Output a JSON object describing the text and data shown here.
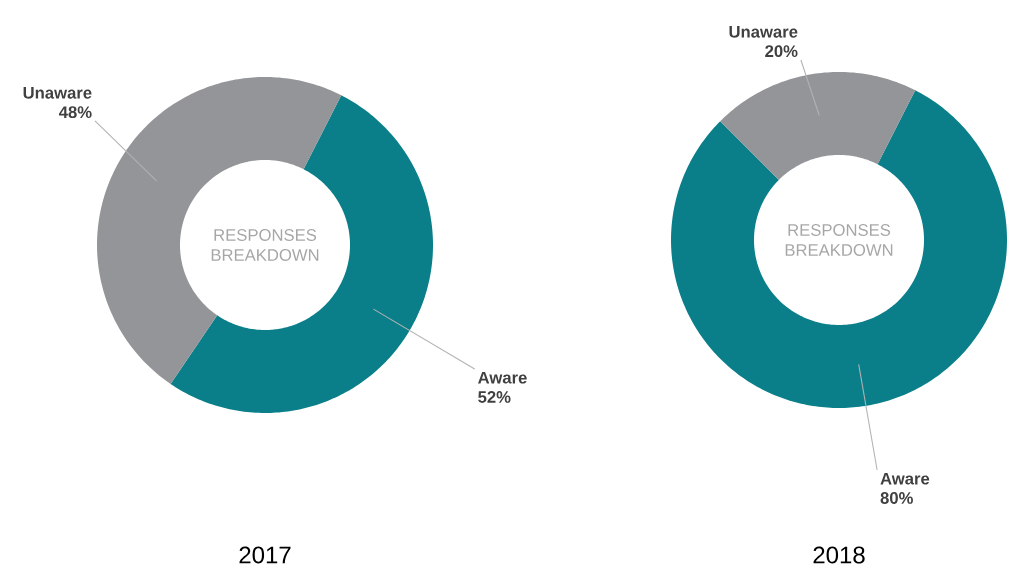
{
  "chart_data": [
    {
      "type": "donut",
      "title": "2017",
      "annotations": [
        "RESPONSES BREAKDOWN"
      ],
      "categories": [
        "Aware",
        "Unaware"
      ],
      "values": [
        52,
        48
      ],
      "value_labels": [
        "52%",
        "48%"
      ],
      "colors": [
        "#0a7f8a",
        "#939598"
      ]
    },
    {
      "type": "donut",
      "title": "2018",
      "annotations": [
        "RESPONSES BREAKDOWN"
      ],
      "categories": [
        "Aware",
        "Unaware"
      ],
      "values": [
        80,
        20
      ],
      "value_labels": [
        "80%",
        "20%"
      ],
      "colors": [
        "#0a7f8a",
        "#939598"
      ]
    }
  ]
}
